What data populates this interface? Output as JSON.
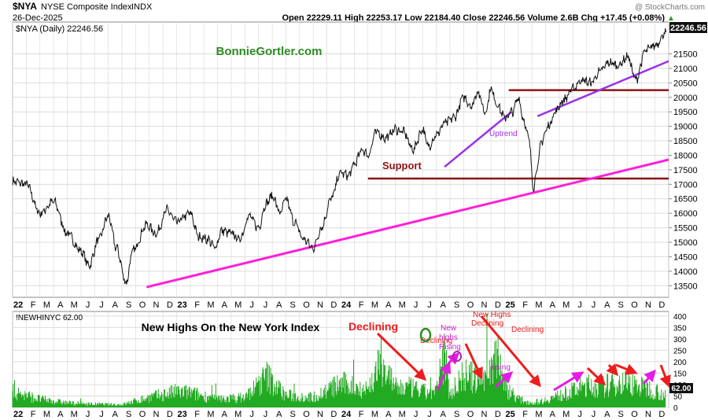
{
  "header": {
    "symbol": "$NYA",
    "name": "NYSE Composite Index",
    "exchange": "INDX",
    "date": "26-Dec-2025",
    "quote": "Open 22229.11  High 22253.17  Low 22184.40  Close 22246.56  Volume 2.6B  Chg +17.45 (+0.08%)",
    "quote_arrow": "▲",
    "watermark": "@ StockCharts.com"
  },
  "chart_data": [
    {
      "type": "line",
      "legend": "$NYA (Daily) 22246.56",
      "last_value": "22246.56",
      "title": "BonnieGortler.com",
      "ylim": [
        13100,
        22600
      ],
      "yticks": [
        13500,
        14000,
        14500,
        15000,
        15500,
        16000,
        16500,
        17000,
        17500,
        18000,
        18500,
        19000,
        19500,
        20000,
        20500,
        21000,
        21500
      ],
      "ytick_labels": [
        "13500",
        "14000",
        "14500",
        "15000",
        "15500",
        "16000",
        "16500",
        "17000",
        "17500",
        "18000",
        "18500",
        "19000",
        "19500",
        "20000",
        "20500",
        "21000",
        "21500"
      ],
      "x_labels": [
        "22",
        "F",
        "M",
        "A",
        "M",
        "J",
        "J",
        "A",
        "S",
        "O",
        "N",
        "D",
        "23",
        "F",
        "M",
        "A",
        "M",
        "J",
        "J",
        "A",
        "S",
        "O",
        "N",
        "D",
        "24",
        "F",
        "M",
        "A",
        "M",
        "J",
        "J",
        "A",
        "S",
        "O",
        "N",
        "D",
        "25",
        "F",
        "M",
        "A",
        "M",
        "J",
        "J",
        "A",
        "S",
        "O",
        "N",
        "D"
      ],
      "bold_x_labels": [
        "22",
        "23",
        "24",
        "25"
      ],
      "key_points": {
        "x_month_index": [
          0,
          1,
          2,
          3,
          4,
          5,
          5.6,
          6.3,
          7,
          7.6,
          8.3,
          8.8,
          9.8,
          10.5,
          11.3,
          12,
          13,
          13.6,
          14.3,
          14.8,
          15.3,
          16,
          16.6,
          17.3,
          18,
          18.5,
          19,
          19.6,
          20,
          20.6,
          21.3,
          22,
          22.6,
          23.3,
          24,
          24.6,
          25,
          25.6,
          26,
          26.6,
          27.3,
          28,
          28.6,
          29.3,
          30,
          30.4,
          31,
          31.6,
          32.3,
          33,
          33.6,
          34,
          34.6,
          35,
          35.4,
          36,
          36.6,
          37,
          37.4,
          37.8,
          38.1,
          38.4,
          38.7,
          39.2,
          39.7,
          40.3,
          41,
          41.6,
          42.3,
          43,
          43.6,
          44.3,
          45,
          45.6,
          46.3,
          47,
          47.8
        ],
        "close": [
          17100,
          17000,
          16000,
          16400,
          15300,
          14700,
          14200,
          15100,
          15900,
          14800,
          13600,
          14700,
          15600,
          15300,
          16100,
          15700,
          16000,
          15200,
          15100,
          14800,
          15400,
          15300,
          15100,
          15900,
          15500,
          16300,
          16600,
          16000,
          16500,
          15700,
          15100,
          14800,
          15500,
          16500,
          17400,
          17300,
          17700,
          18200,
          18000,
          18800,
          18600,
          18900,
          18800,
          18200,
          18900,
          18300,
          18700,
          19100,
          19300,
          20000,
          19700,
          20200,
          19500,
          20300,
          19800,
          19300,
          19500,
          20000,
          19200,
          18500,
          16900,
          17600,
          18500,
          19000,
          19500,
          19900,
          20300,
          20600,
          20500,
          20900,
          21200,
          21100,
          21400,
          20600,
          21600,
          21800,
          22246
        ]
      },
      "annotations": [
        {
          "text": "Support",
          "type": "horizontal-line",
          "value": 17200,
          "from_month": 26,
          "to_month": 48
        },
        {
          "text": "",
          "type": "horizontal-line",
          "value": 20250,
          "from_month": 36.3,
          "to_month": 48
        },
        {
          "text": "Uptrend",
          "type": "trend-line",
          "from": [
            31.6,
            17600
          ],
          "to": [
            36.5,
            19500
          ]
        },
        {
          "text": "",
          "type": "trend-line",
          "from": [
            38.4,
            19350
          ],
          "to": [
            48,
            21250
          ]
        },
        {
          "text": "",
          "type": "trend-line",
          "from": [
            9.8,
            13450
          ],
          "to": [
            48,
            17850
          ]
        }
      ]
    },
    {
      "type": "bar",
      "legend": "!NEWHINYC 62.00",
      "last_value": "62.00",
      "title": "New Highs On the New York Index",
      "ylim": [
        0,
        420
      ],
      "yticks": [
        0,
        50,
        100,
        150,
        200,
        250,
        300,
        350,
        400
      ],
      "ytick_labels": [
        "0",
        "50",
        "100",
        "150",
        "200",
        "250",
        "300",
        "350",
        "400"
      ],
      "key_points": {
        "x_month_index": [
          0,
          2,
          4,
          6,
          8,
          10,
          12,
          13,
          15,
          17,
          18.6,
          20,
          22,
          24,
          25,
          26,
          27,
          28,
          29,
          30,
          31,
          31.6,
          32,
          33,
          34,
          35,
          35.5,
          36,
          36.5,
          37,
          38,
          39,
          40,
          41,
          42,
          43,
          44,
          45,
          46,
          47,
          47.8
        ],
        "highs": [
          85,
          45,
          25,
          18,
          15,
          55,
          85,
          80,
          45,
          55,
          170,
          65,
          55,
          130,
          115,
          100,
          250,
          105,
          110,
          85,
          80,
          300,
          65,
          180,
          150,
          210,
          330,
          110,
          85,
          45,
          25,
          40,
          65,
          90,
          120,
          110,
          130,
          140,
          110,
          95,
          62
        ]
      },
      "annotations": [
        {
          "text": "Declining",
          "color": "#ee1c1c",
          "weight": "bold",
          "size": 14
        },
        {
          "text": "Declining",
          "color": "#ee1c1c",
          "weight": "normal",
          "size": 10
        },
        {
          "text": "New Highs",
          "color": "#ee1c1c",
          "weight": "normal",
          "size": 10
        },
        {
          "text": "Declining",
          "color": "#ee1c1c",
          "weight": "normal",
          "size": 10
        },
        {
          "text": "Declining",
          "color": "#ee1c1c",
          "weight": "normal",
          "size": 10
        },
        {
          "text": "New",
          "color": "#cc22cc",
          "weight": "normal",
          "size": 10
        },
        {
          "text": "highs",
          "color": "#cc22cc",
          "weight": "normal",
          "size": 10
        },
        {
          "text": "Rising",
          "color": "#cc22cc",
          "weight": "normal",
          "size": 10
        },
        {
          "text": "rising",
          "color": "#cc22cc",
          "weight": "normal",
          "size": 10
        }
      ]
    }
  ],
  "colors": {
    "price": "#111111",
    "bars": "#22aa22",
    "support": "#8b1414",
    "uptrend": "#9b30e8",
    "long_trend": "#ff1fd8",
    "title_green": "#2e8b22",
    "red": "#ee1c1c",
    "magenta": "#e61be6",
    "grid": "#dcdcdc",
    "circle_green": "#2e8b22",
    "circle_purple": "#aa2aaa",
    "last_box": "#111111"
  }
}
